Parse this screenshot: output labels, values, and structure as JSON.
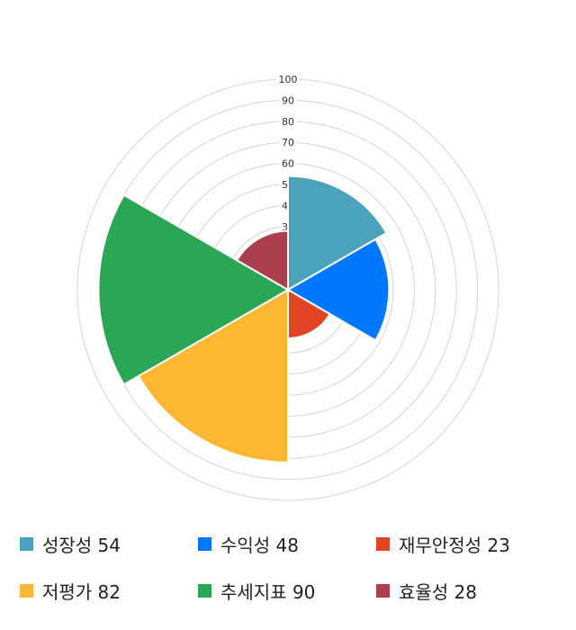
{
  "chart_data": {
    "type": "polar-area",
    "categories": [
      "성장성",
      "수익성",
      "재무안정성",
      "저평가",
      "추세지표",
      "효율성"
    ],
    "values": [
      54,
      48,
      23,
      82,
      90,
      28
    ],
    "colors": [
      "#4aa3bb",
      "#0077ff",
      "#e34425",
      "#fdb833",
      "#2ba654",
      "#ab3f4f"
    ],
    "rlim": [
      0,
      100
    ],
    "ticks": [
      10,
      20,
      30,
      40,
      50,
      60,
      70,
      80,
      90,
      100
    ],
    "grid": true,
    "legend_position": "bottom",
    "legend_labels": [
      "성장성 54",
      "수익성 48",
      "재무안정성 23",
      "저평가 82",
      "추세지표 90",
      "효율성 28"
    ]
  }
}
